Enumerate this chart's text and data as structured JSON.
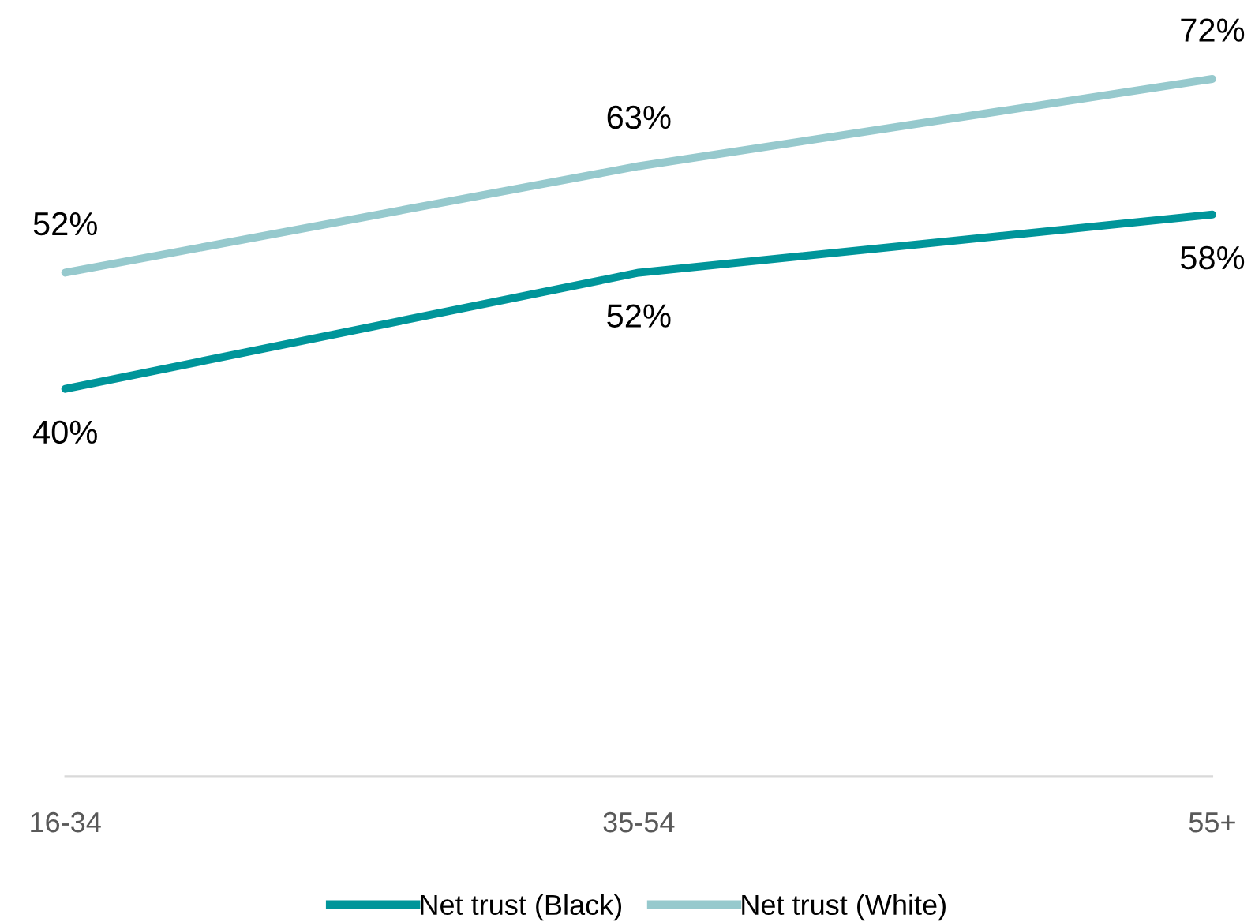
{
  "chart_data": {
    "type": "line",
    "categories": [
      "16-34",
      "35-54",
      "55+"
    ],
    "series": [
      {
        "name": "Net trust (Black)",
        "color": "#00959a",
        "values": [
          40,
          52,
          58
        ],
        "value_labels": [
          "40%",
          "52%",
          "58%"
        ]
      },
      {
        "name": "Net trust (White)",
        "color": "#96c9cd",
        "values": [
          52,
          63,
          72
        ],
        "value_labels": [
          "52%",
          "63%",
          "72%"
        ]
      }
    ],
    "legend": "bottom",
    "grid": false,
    "marker": "none",
    "line_style": "solid"
  }
}
